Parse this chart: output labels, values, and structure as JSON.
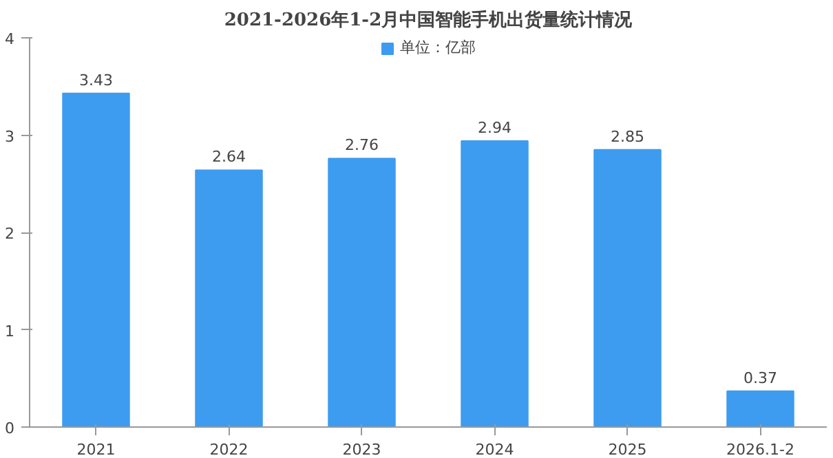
{
  "chart_data": {
    "type": "bar",
    "title": "2021-2026年1-2月中国智能手机出货量统计情况",
    "categories": [
      "2021",
      "2022",
      "2023",
      "2024",
      "2025",
      "2026.1-2"
    ],
    "series": [
      {
        "name": "单位：亿部",
        "color": "#3d9cf0",
        "values": [
          3.43,
          2.64,
          2.76,
          2.94,
          2.85,
          0.37
        ]
      }
    ],
    "ylim": [
      0,
      4
    ],
    "yticks": [
      0,
      1,
      2,
      3,
      4
    ],
    "grid": false,
    "legend": "top",
    "data_labels": true
  }
}
